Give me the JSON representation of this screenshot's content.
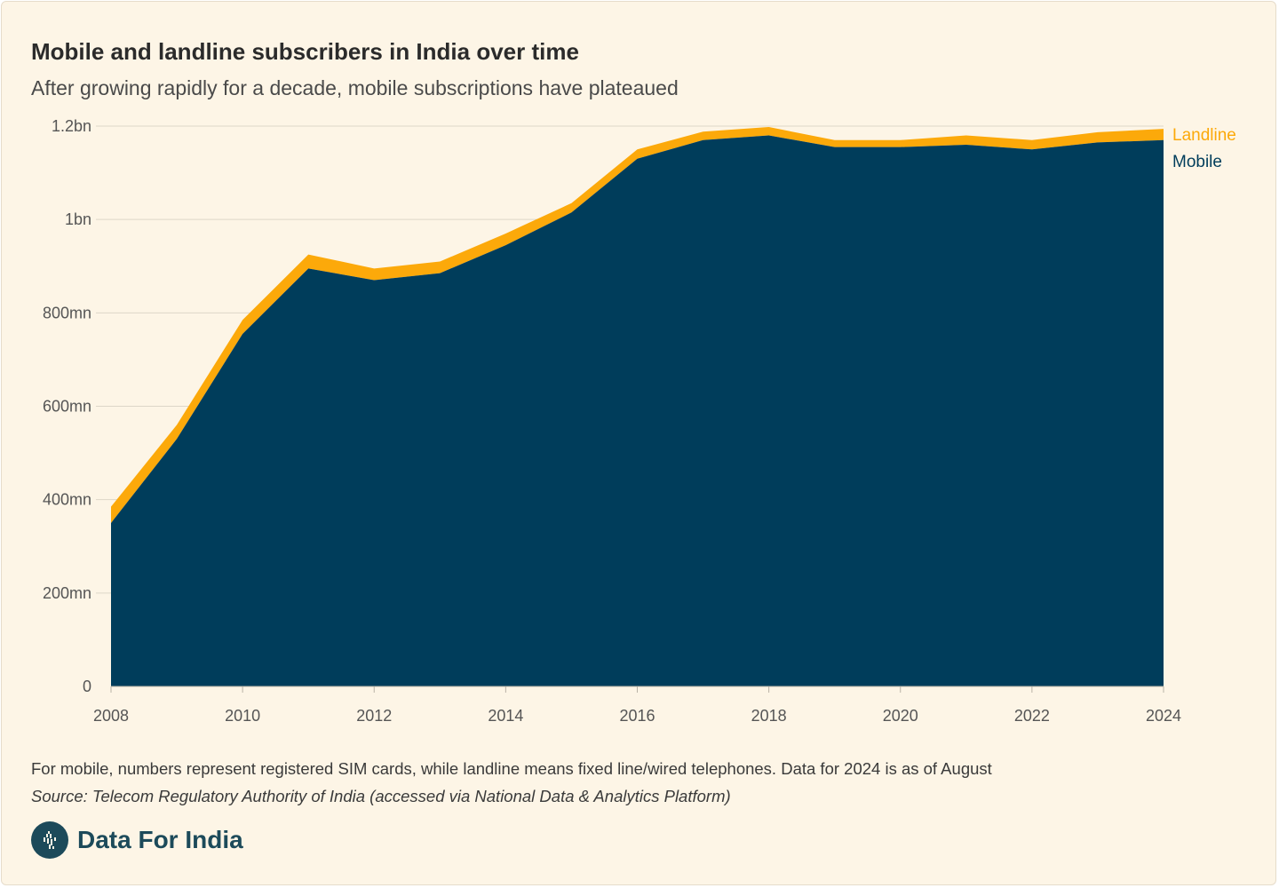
{
  "title": "Mobile and landline subscribers in India over time",
  "subtitle": "After growing rapidly for a decade, mobile subscriptions have plateaued",
  "note": "For mobile, numbers represent registered SIM cards, while landline means fixed line/wired telephones. Data for 2024 is as of August",
  "source": "Source: Telecom Regulatory Authority of India (accessed via National Data & Analytics Platform)",
  "brand": {
    "name": "Data For India",
    "icon": "india-map-icon"
  },
  "colors": {
    "mobile": "#003d5b",
    "landline": "#fca90a",
    "background": "#fdf5e6",
    "brand": "#1c4a5a"
  },
  "chart_data": {
    "type": "area",
    "stacked": true,
    "title": "Mobile and landline subscribers in India over time",
    "subtitle": "After growing rapidly for a decade, mobile subscriptions have plateaued",
    "x": [
      2008,
      2009,
      2010,
      2011,
      2012,
      2013,
      2014,
      2015,
      2016,
      2017,
      2018,
      2019,
      2020,
      2021,
      2022,
      2023,
      2024
    ],
    "series": [
      {
        "name": "Mobile",
        "unit": "millions",
        "values": [
          350,
          530,
          755,
          895,
          870,
          885,
          945,
          1015,
          1130,
          1170,
          1180,
          1155,
          1155,
          1160,
          1150,
          1165,
          1170
        ]
      },
      {
        "name": "Landline",
        "unit": "millions",
        "values": [
          35,
          30,
          30,
          30,
          25,
          25,
          25,
          20,
          20,
          18,
          18,
          15,
          15,
          20,
          20,
          22,
          24
        ]
      }
    ],
    "xticks": [
      "2008",
      "2010",
      "2012",
      "2014",
      "2016",
      "2018",
      "2020",
      "2022",
      "2024"
    ],
    "yticks": [
      {
        "value": 0,
        "label": "0"
      },
      {
        "value": 200,
        "label": "200mn"
      },
      {
        "value": 400,
        "label": "400mn"
      },
      {
        "value": 600,
        "label": "600mn"
      },
      {
        "value": 800,
        "label": "800mn"
      },
      {
        "value": 1000,
        "label": "1bn"
      },
      {
        "value": 1200,
        "label": "1.2bn"
      }
    ],
    "xlim": [
      2008,
      2024
    ],
    "ylim": [
      0,
      1200
    ],
    "grid": true,
    "legend": "inline-right",
    "xlabel": "",
    "ylabel": ""
  }
}
